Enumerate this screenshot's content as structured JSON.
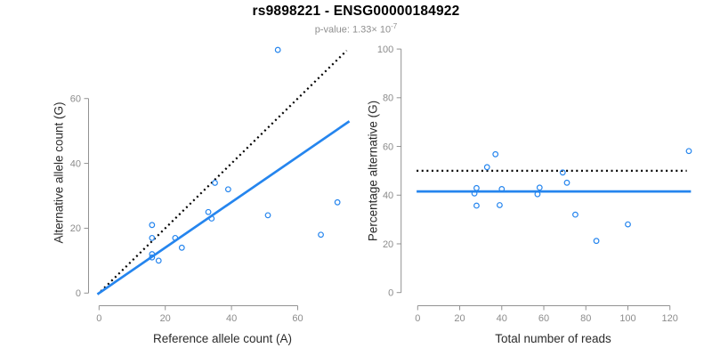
{
  "header": {
    "title": "rs9898221 - ENSG00000184922",
    "pvalue_text": "p-value: 1.33× 10",
    "pvalue_exponent": "-7"
  },
  "colors": {
    "accent_blue": "#2585ee",
    "line_black": "#000000",
    "axis_gray": "#929292",
    "tick_label_gray": "#8c8c8c",
    "axis_label_dark": "#2b2b2b",
    "subtitle_gray": "#8e8e8e"
  },
  "chart_data": [
    {
      "type": "scatter",
      "name": "allele-counts-scatter",
      "xlabel": "Reference allele count (A)",
      "ylabel": "Alternative allele count (G)",
      "x_ticks": [
        0,
        20,
        40,
        60
      ],
      "y_ticks": [
        0,
        20,
        40,
        60
      ],
      "xlim": [
        -3,
        76
      ],
      "ylim": [
        -3,
        78
      ],
      "grid": false,
      "points": [
        [
          16,
          21
        ],
        [
          16,
          17
        ],
        [
          16,
          12
        ],
        [
          16,
          11
        ],
        [
          18,
          10
        ],
        [
          23,
          17
        ],
        [
          25,
          14
        ],
        [
          33,
          25
        ],
        [
          34,
          23
        ],
        [
          35,
          34
        ],
        [
          39,
          32
        ],
        [
          51,
          24
        ],
        [
          67,
          18
        ],
        [
          72,
          28
        ],
        [
          54,
          75
        ]
      ],
      "lines": [
        {
          "name": "identity-expected-line",
          "style": "dotted",
          "color": "#000000",
          "slope": 1,
          "intercept": 0,
          "x_range": [
            0.5,
            74.8
          ]
        },
        {
          "name": "fit-line",
          "style": "solid",
          "color": "#2585ee",
          "slope": 0.701,
          "intercept": 0,
          "x_range": [
            -0.5,
            75.6
          ]
        }
      ]
    },
    {
      "type": "scatter",
      "name": "percentage-vs-reads-scatter",
      "xlabel": "Total number of reads",
      "ylabel": "Percentage alternative (G)",
      "x_ticks": [
        0,
        20,
        40,
        60,
        80,
        100,
        120
      ],
      "y_ticks": [
        0,
        20,
        40,
        60,
        80,
        100
      ],
      "xlim": [
        -5,
        134
      ],
      "ylim": [
        0,
        100
      ],
      "grid": false,
      "points": [
        [
          37,
          56.8
        ],
        [
          33,
          51.5
        ],
        [
          28,
          42.9
        ],
        [
          27,
          40.7
        ],
        [
          28,
          35.7
        ],
        [
          40,
          42.5
        ],
        [
          39,
          35.9
        ],
        [
          58,
          43.1
        ],
        [
          57,
          40.4
        ],
        [
          69,
          49.3
        ],
        [
          71,
          45.1
        ],
        [
          75,
          32.0
        ],
        [
          85,
          21.2
        ],
        [
          100,
          28.0
        ],
        [
          129,
          58.1
        ]
      ],
      "lines": [
        {
          "name": "expected-50pct-line",
          "style": "dotted",
          "color": "#000000",
          "slope": 0,
          "intercept": 50,
          "x_range": [
            -0.5,
            128
          ]
        },
        {
          "name": "mean-percentage-line",
          "style": "solid",
          "color": "#2585ee",
          "slope": 0,
          "intercept": 41.5,
          "x_range": [
            -0.5,
            130
          ]
        }
      ]
    }
  ]
}
